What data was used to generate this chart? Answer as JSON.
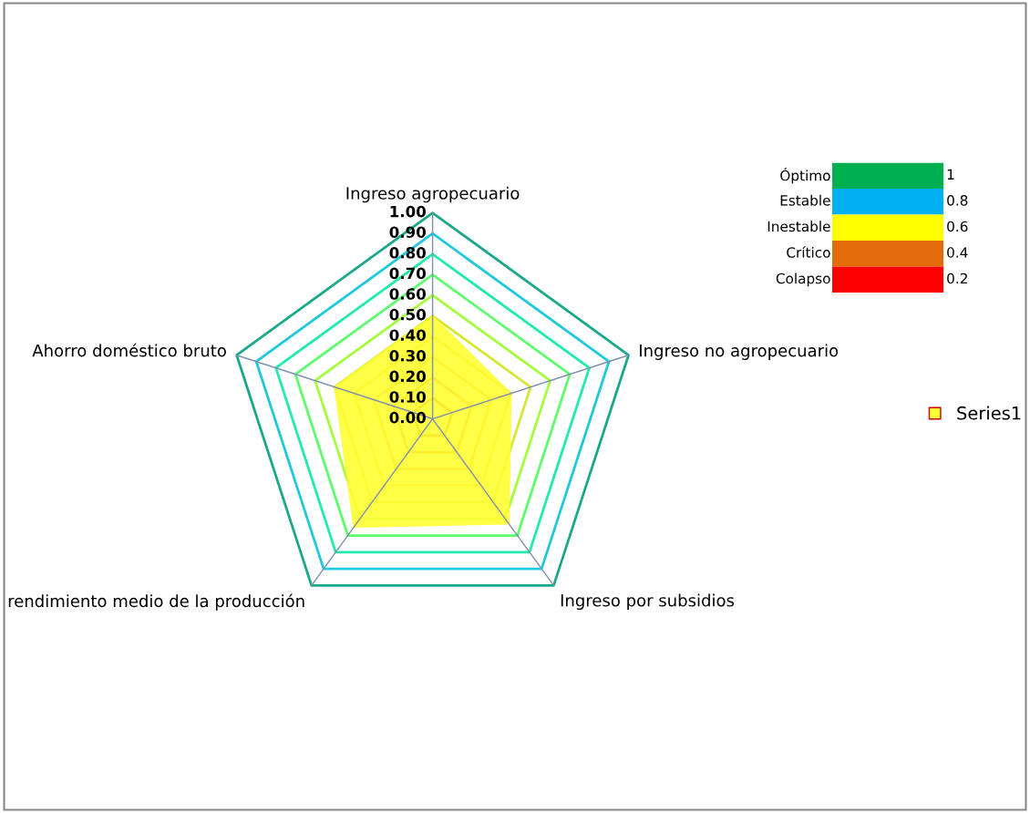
{
  "chart_data": [
    {
      "type": "radar",
      "categories": [
        "Ingreso agropecuario",
        "Ingreso no agropecuario",
        "Ingreso por subsidios",
        "rendimiento medio de la producción",
        "Ahorro doméstico bruto"
      ],
      "series": [
        {
          "name": "Series1",
          "color": "#ffff33",
          "values": [
            0.5,
            0.4,
            0.63,
            0.65,
            0.5
          ]
        }
      ],
      "ylim": [
        0,
        1
      ],
      "yticks": [
        {
          "value": 0,
          "label": "0.00"
        },
        {
          "value": 0.1,
          "label": "0.10"
        },
        {
          "value": 0.2,
          "label": "0.20"
        },
        {
          "value": 0.3,
          "label": "0.30"
        },
        {
          "value": 0.4,
          "label": "0.40"
        },
        {
          "value": 0.5,
          "label": "0.50"
        },
        {
          "value": 0.6,
          "label": "0.60"
        },
        {
          "value": 0.7,
          "label": "0.70"
        },
        {
          "value": 0.8,
          "label": "0.80"
        },
        {
          "value": 0.9,
          "label": "0.90"
        },
        {
          "value": 1,
          "label": "1.00"
        }
      ],
      "grid": true,
      "legend": "right",
      "marker": "none"
    },
    {
      "type": "other",
      "categories": [
        "Óptimo",
        "Estable",
        "Inestable",
        "Crítico",
        "Colapso"
      ],
      "values": [
        1,
        0.8,
        0.6,
        0.4,
        0.2
      ],
      "colors": [
        "#00b050",
        "#00b0f0",
        "#ffff00",
        "#e26b0a",
        "#ff0000"
      ],
      "data_labels": true
    }
  ]
}
